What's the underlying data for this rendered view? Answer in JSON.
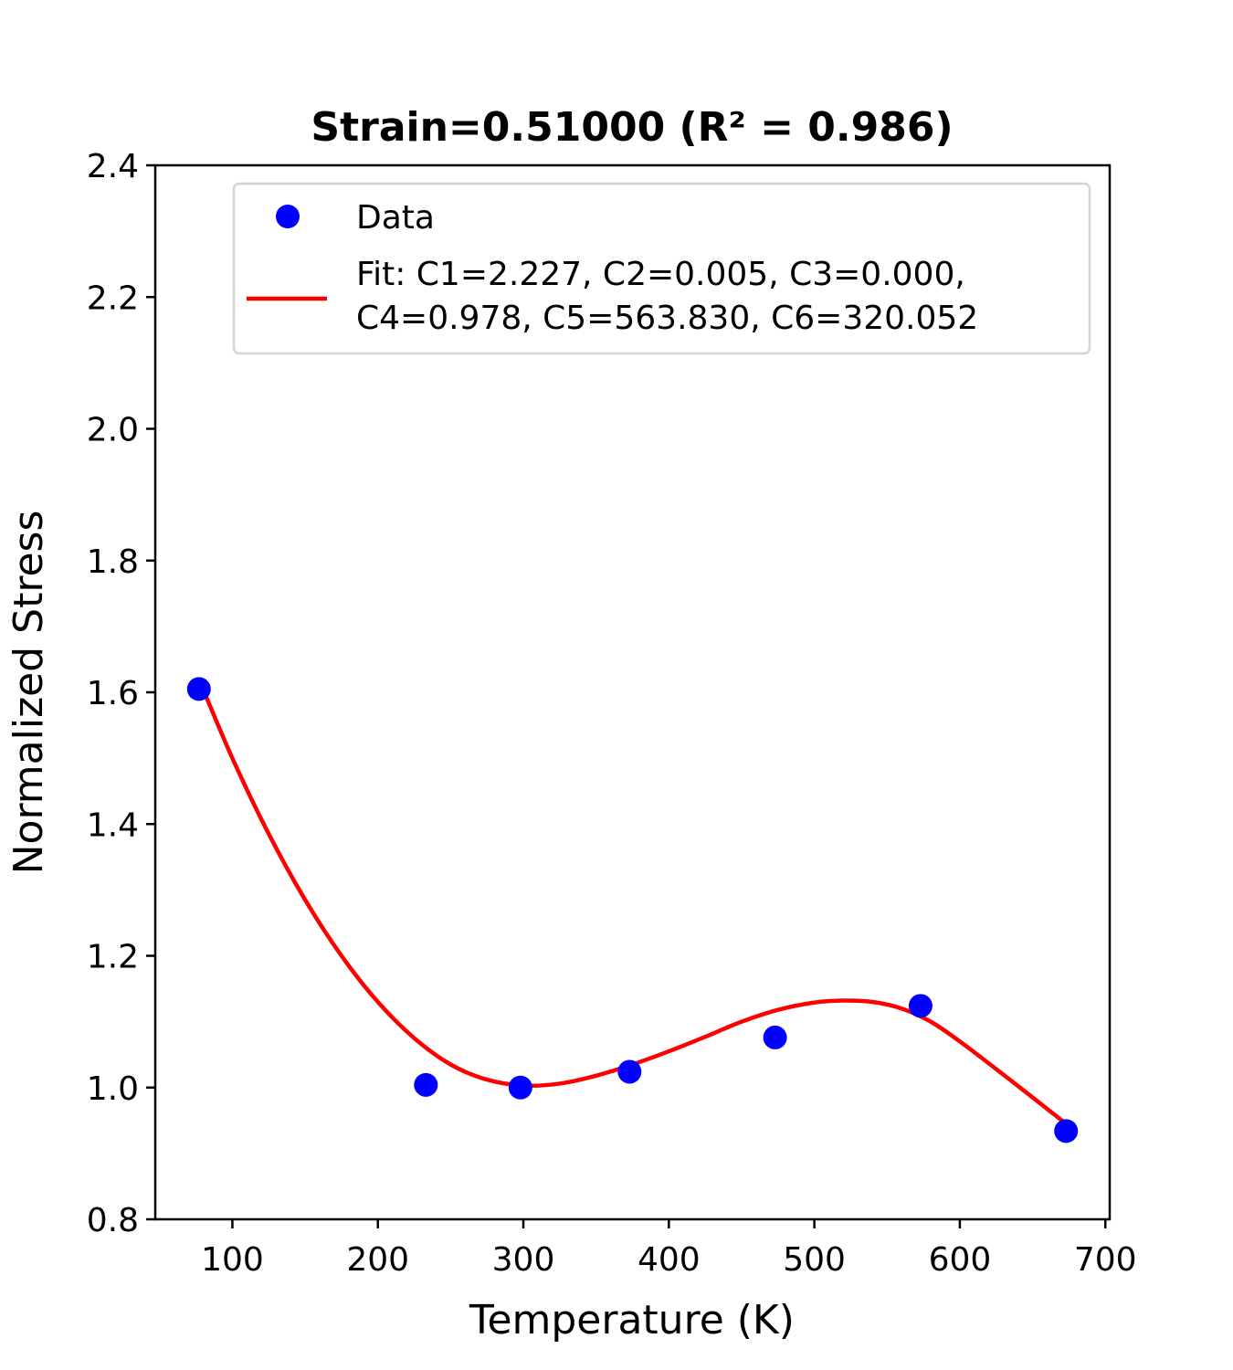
{
  "chart_data": {
    "type": "scatter",
    "title": "Strain=0.51000 (R² = 0.986)",
    "xlabel": "Temperature (K)",
    "ylabel": "Normalized Stress",
    "xlim": [
      47,
      703
    ],
    "ylim": [
      0.8,
      2.4
    ],
    "x_ticks": [
      "100",
      "200",
      "300",
      "400",
      "500",
      "600",
      "700"
    ],
    "y_ticks": [
      "0.8",
      "1.0",
      "1.2",
      "1.4",
      "1.6",
      "1.8",
      "2.0",
      "2.2",
      "2.4"
    ],
    "grid": false,
    "legend_position": "top-right",
    "series": [
      {
        "name": "Data",
        "kind": "markers",
        "color": "#0000ff",
        "x": [
          77,
          233,
          298,
          373,
          473,
          573,
          673
        ],
        "y": [
          1.605,
          1.004,
          1.0,
          1.024,
          1.076,
          1.124,
          0.934
        ]
      },
      {
        "name_lines": [
          "Fit: C1=2.227, C2=0.005, C3=0.000,",
          "C4=0.978, C5=563.830, C6=320.052"
        ],
        "kind": "line",
        "color": "#ff0000",
        "x": [
          77,
          100,
          125,
          150,
          175,
          200,
          225,
          250,
          275,
          300,
          325,
          350,
          375,
          400,
          425,
          450,
          475,
          500,
          520,
          540,
          560,
          580,
          600,
          625,
          650,
          673
        ],
        "y": [
          1.62,
          1.5,
          1.385,
          1.285,
          1.2,
          1.13,
          1.075,
          1.035,
          1.012,
          1.003,
          1.006,
          1.018,
          1.035,
          1.055,
          1.077,
          1.1,
          1.118,
          1.129,
          1.132,
          1.13,
          1.12,
          1.1,
          1.07,
          1.028,
          0.985,
          0.945
        ]
      }
    ]
  }
}
